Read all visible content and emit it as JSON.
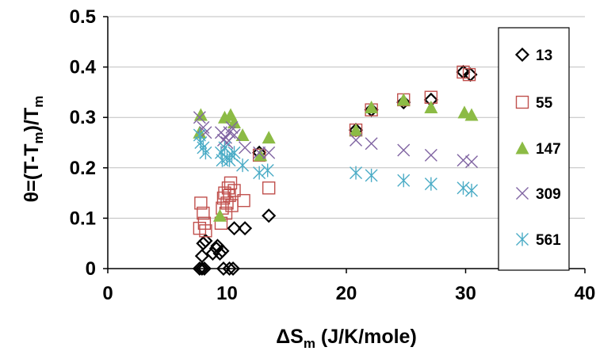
{
  "chart_data": {
    "type": "scatter",
    "xlim": [
      0,
      40
    ],
    "ylim": [
      0,
      0.5
    ],
    "xticks": [
      0,
      10,
      20,
      30,
      40
    ],
    "yticks": [
      0,
      0.1,
      0.2,
      0.3,
      0.4,
      0.5
    ],
    "xlabel": {
      "main": "ΔS",
      "sub": "m",
      "rest": " (J/K/mole)"
    },
    "ylabel": {
      "a": "θ=(T-T",
      "a_sub": "m",
      "b": ")/T",
      "b_sub": "m"
    },
    "grid": "horizontal",
    "legend_position": "right",
    "series": [
      {
        "name": "13",
        "marker": "diamond",
        "color": "#000000",
        "points": [
          [
            7.7,
            0
          ],
          [
            7.9,
            0
          ],
          [
            8.1,
            0
          ],
          [
            7.9,
            0.025
          ],
          [
            8,
            0.05
          ],
          [
            8.2,
            0.055
          ],
          [
            8.8,
            0.03
          ],
          [
            9.1,
            0.04
          ],
          [
            9.2,
            0.045
          ],
          [
            9.4,
            0.03
          ],
          [
            9.6,
            0.035
          ],
          [
            9.7,
            0
          ],
          [
            10.2,
            0
          ],
          [
            10.5,
            0
          ],
          [
            10.6,
            0.08
          ],
          [
            11.5,
            0.08
          ],
          [
            13.5,
            0.105
          ],
          [
            12.7,
            0.23
          ],
          [
            20.8,
            0.275
          ],
          [
            22.1,
            0.315
          ],
          [
            24.8,
            0.33
          ],
          [
            27.1,
            0.335
          ],
          [
            29.8,
            0.39
          ],
          [
            30.4,
            0.385
          ]
        ]
      },
      {
        "name": "55",
        "marker": "square",
        "color": "#C0504D",
        "points": [
          [
            7.7,
            0.08
          ],
          [
            7.8,
            0.13
          ],
          [
            8,
            0.11
          ],
          [
            8.1,
            0.09
          ],
          [
            8.2,
            0.075
          ],
          [
            9.5,
            0.09
          ],
          [
            9.6,
            0.12
          ],
          [
            9.7,
            0.14
          ],
          [
            9.8,
            0.15
          ],
          [
            9.9,
            0.11
          ],
          [
            10,
            0.13
          ],
          [
            10.1,
            0.16
          ],
          [
            10.2,
            0.145
          ],
          [
            10.3,
            0.17
          ],
          [
            10.4,
            0.125
          ],
          [
            10.6,
            0.155
          ],
          [
            11.4,
            0.135
          ],
          [
            13.5,
            0.16
          ],
          [
            12.7,
            0.225
          ],
          [
            20.8,
            0.275
          ],
          [
            22.1,
            0.315
          ],
          [
            24.8,
            0.335
          ],
          [
            27.1,
            0.34
          ],
          [
            29.8,
            0.39
          ],
          [
            30.3,
            0.385
          ]
        ]
      },
      {
        "name": "147",
        "marker": "triangle",
        "color": "#8CBB45",
        "points": [
          [
            7.7,
            0.27
          ],
          [
            7.8,
            0.305
          ],
          [
            9.4,
            0.105
          ],
          [
            9.8,
            0.3
          ],
          [
            10.3,
            0.305
          ],
          [
            10.6,
            0.29
          ],
          [
            11.3,
            0.265
          ],
          [
            13.5,
            0.26
          ],
          [
            12.8,
            0.225
          ],
          [
            20.8,
            0.275
          ],
          [
            22.1,
            0.32
          ],
          [
            24.8,
            0.335
          ],
          [
            27.1,
            0.32
          ],
          [
            29.9,
            0.31
          ],
          [
            30.5,
            0.305
          ]
        ]
      },
      {
        "name": "309",
        "marker": "x",
        "color": "#8064A2",
        "points": [
          [
            7.7,
            0.3
          ],
          [
            8,
            0.28
          ],
          [
            8.2,
            0.27
          ],
          [
            9.5,
            0.27
          ],
          [
            9.7,
            0.255
          ],
          [
            9.9,
            0.26
          ],
          [
            10,
            0.25
          ],
          [
            10.2,
            0.27
          ],
          [
            10.4,
            0.28
          ],
          [
            10.6,
            0.265
          ],
          [
            11.5,
            0.24
          ],
          [
            13.5,
            0.23
          ],
          [
            12.7,
            0.23
          ],
          [
            20.8,
            0.255
          ],
          [
            22.1,
            0.248
          ],
          [
            24.8,
            0.235
          ],
          [
            27.1,
            0.225
          ],
          [
            29.8,
            0.215
          ],
          [
            30.5,
            0.212
          ]
        ]
      },
      {
        "name": "561",
        "marker": "star",
        "color": "#4BACC6",
        "points": [
          [
            7.7,
            0.265
          ],
          [
            7.8,
            0.25
          ],
          [
            8,
            0.24
          ],
          [
            8.2,
            0.23
          ],
          [
            9.5,
            0.23
          ],
          [
            9.6,
            0.215
          ],
          [
            9.8,
            0.24
          ],
          [
            10,
            0.22
          ],
          [
            10.2,
            0.215
          ],
          [
            10.4,
            0.225
          ],
          [
            10.6,
            0.23
          ],
          [
            11.3,
            0.205
          ],
          [
            12.7,
            0.19
          ],
          [
            13.4,
            0.195
          ],
          [
            20.8,
            0.19
          ],
          [
            22.1,
            0.185
          ],
          [
            24.8,
            0.175
          ],
          [
            27.1,
            0.168
          ],
          [
            29.8,
            0.16
          ],
          [
            30.5,
            0.155
          ]
        ]
      }
    ]
  }
}
